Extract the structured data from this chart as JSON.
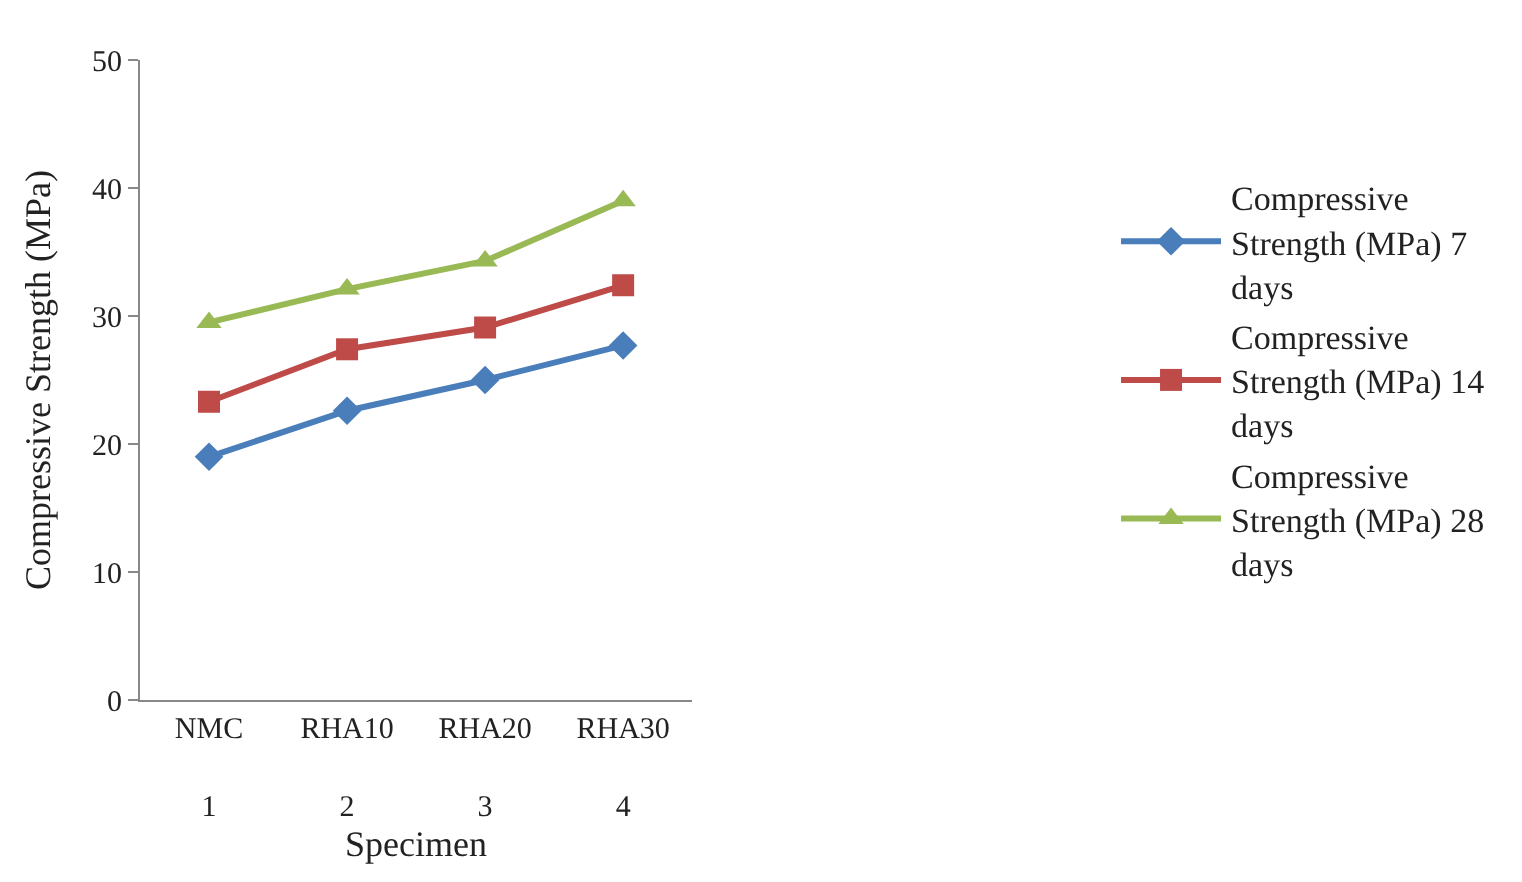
{
  "chart_data": {
    "type": "line",
    "xlabel": "Specimen",
    "ylabel": "Compressive Strength (MPa)",
    "categories": [
      "NMC\n1",
      "RHA10\n2",
      "RHA20\n3",
      "RHA30\n4"
    ],
    "series": [
      {
        "name": "Compressive Strength (MPa) 7 days",
        "color": "#4a7ebb",
        "marker": "diamond",
        "values": [
          19.0,
          22.6,
          25.0,
          27.7
        ]
      },
      {
        "name": "Compressive Strength (MPa) 14 days",
        "color": "#be4b48",
        "marker": "square",
        "values": [
          23.3,
          27.4,
          29.1,
          32.4
        ]
      },
      {
        "name": "Compressive Strength (MPa) 28 days",
        "color": "#98b954",
        "marker": "triangle",
        "values": [
          29.5,
          32.1,
          34.3,
          39.0
        ]
      }
    ],
    "ylim": [
      0,
      50
    ],
    "yticks": [
      0,
      10,
      20,
      30,
      40,
      50
    ],
    "legend": "right"
  }
}
